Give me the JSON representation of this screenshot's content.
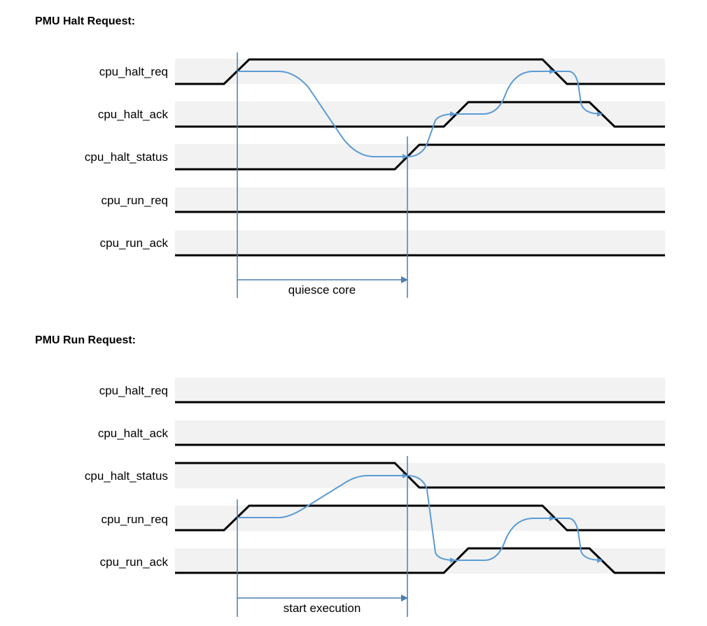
{
  "diagrams": [
    {
      "title": "PMU Halt Request:",
      "signals": [
        {
          "name": "cpu_halt_req"
        },
        {
          "name": "cpu_halt_ack"
        },
        {
          "name": "cpu_halt_status"
        },
        {
          "name": "cpu_run_req"
        },
        {
          "name": "cpu_run_ack"
        }
      ],
      "span_label": "quiesce core"
    },
    {
      "title": "PMU Run Request:",
      "signals": [
        {
          "name": "cpu_halt_req"
        },
        {
          "name": "cpu_halt_ack"
        },
        {
          "name": "cpu_halt_status"
        },
        {
          "name": "cpu_run_req"
        },
        {
          "name": "cpu_run_ack"
        }
      ],
      "span_label": "start execution"
    }
  ],
  "colors": {
    "lane": "#f2f2f2",
    "wave": "#000000",
    "arrow": "#5b9bd5",
    "marker": "#4a7fb0"
  }
}
